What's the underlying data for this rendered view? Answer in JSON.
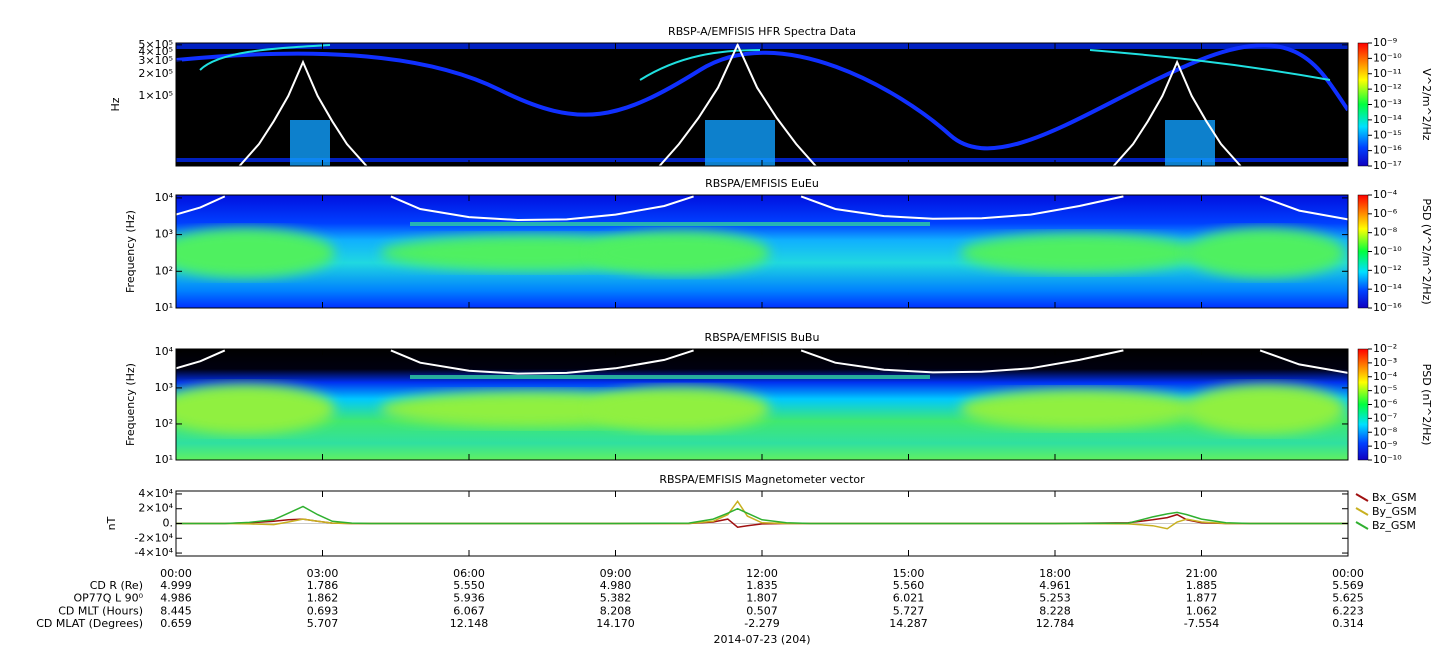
{
  "x_axis": {
    "xlim": [
      0,
      24
    ],
    "xticks": [
      {
        "value": 0,
        "label": "00:00"
      },
      {
        "value": 3,
        "label": "03:00"
      },
      {
        "value": 6,
        "label": "06:00"
      },
      {
        "value": 9,
        "label": "09:00"
      },
      {
        "value": 12,
        "label": "12:00"
      },
      {
        "value": 15,
        "label": "15:00"
      },
      {
        "value": 18,
        "label": "18:00"
      },
      {
        "value": 21,
        "label": "21:00"
      },
      {
        "value": 24,
        "label": "00:00"
      }
    ],
    "ephemeris": [
      {
        "label": "CD R (Re)",
        "values": [
          "4.999",
          "1.786",
          "5.550",
          "4.980",
          "1.835",
          "5.560",
          "4.961",
          "1.885",
          "5.569"
        ]
      },
      {
        "label": "OP77Q L 90⁰",
        "values": [
          "4.986",
          "1.862",
          "5.936",
          "5.382",
          "1.807",
          "6.021",
          "5.253",
          "1.877",
          "5.625"
        ]
      },
      {
        "label": "CD MLT (Hours)",
        "values": [
          "8.445",
          "0.693",
          "6.067",
          "8.208",
          "0.507",
          "5.727",
          "8.228",
          "1.062",
          "6.223"
        ]
      },
      {
        "label": "CD MLAT (Degrees)",
        "values": [
          "0.659",
          "5.707",
          "12.148",
          "14.170",
          "-2.279",
          "14.287",
          "12.784",
          "-7.554",
          "0.314"
        ]
      }
    ],
    "date": "2014-07-23 (204)"
  },
  "chart_data": [
    {
      "type": "spectrogram",
      "title": "RBSP-A/EMFISIS  HFR Spectra Data",
      "ylabel": "Hz",
      "log_y": true,
      "ylim": [
        11000,
        530000
      ],
      "yticks": [
        {
          "value": 500000,
          "label": "5×10⁵"
        },
        {
          "value": 400000,
          "label": "4×10⁵"
        },
        {
          "value": 300000,
          "label": "3×10⁵"
        },
        {
          "value": 200000,
          "label": "2×10⁵"
        },
        {
          "value": 100000,
          "label": "1×10⁵"
        }
      ],
      "colorbar": {
        "label": "V^2/m^2/Hz",
        "lim": [
          1e-17,
          1e-09
        ],
        "ticks": [
          {
            "value": 1e-09,
            "label": "10⁻⁹"
          },
          {
            "value": 1e-10,
            "label": "10⁻¹⁰"
          },
          {
            "value": 1e-11,
            "label": "10⁻¹¹"
          },
          {
            "value": 1e-12,
            "label": "10⁻¹²"
          },
          {
            "value": 1e-13,
            "label": "10⁻¹³"
          },
          {
            "value": 1e-14,
            "label": "10⁻¹⁴"
          },
          {
            "value": 1e-15,
            "label": "10⁻¹⁵"
          },
          {
            "value": 1e-16,
            "label": "10⁻¹⁶"
          },
          {
            "value": 1e-17,
            "label": "10⁻¹⁷"
          }
        ]
      },
      "overlay_color": "#ffffff",
      "overlays": [
        {
          "x": [
            1.3,
            1.7,
            2.0,
            2.3,
            2.6,
            2.9,
            3.2,
            3.5,
            3.9
          ],
          "values": [
            11000,
            22000,
            45000,
            100000,
            290000,
            100000,
            45000,
            22000,
            11000
          ]
        },
        {
          "x": [
            9.9,
            10.3,
            10.7,
            11.1,
            11.5,
            11.9,
            12.3,
            12.7,
            13.1
          ],
          "values": [
            11000,
            22000,
            50000,
            130000,
            500000,
            130000,
            50000,
            22000,
            11000
          ]
        },
        {
          "x": [
            19.2,
            19.6,
            19.9,
            20.2,
            20.5,
            20.8,
            21.1,
            21.4,
            21.8
          ],
          "values": [
            11000,
            22000,
            45000,
            100000,
            290000,
            100000,
            45000,
            22000,
            11000
          ]
        }
      ]
    },
    {
      "type": "spectrogram",
      "title": "RBSPA/EMFISIS  EuEu",
      "ylabel": "Frequency (Hz)",
      "log_y": true,
      "ylim": [
        10,
        12000
      ],
      "yticks": [
        {
          "value": 10000,
          "label": "10⁴"
        },
        {
          "value": 1000,
          "label": "10³"
        },
        {
          "value": 100,
          "label": "10²"
        },
        {
          "value": 10,
          "label": "10¹"
        }
      ],
      "colorbar": {
        "label": "PSD (V^2/m^2/Hz)",
        "lim": [
          1e-16,
          0.0001
        ],
        "ticks": [
          {
            "value": 0.0001,
            "label": "10⁻⁴"
          },
          {
            "value": 1e-06,
            "label": "10⁻⁶"
          },
          {
            "value": 1e-08,
            "label": "10⁻⁸"
          },
          {
            "value": 1e-10,
            "label": "10⁻¹⁰"
          },
          {
            "value": 1e-12,
            "label": "10⁻¹²"
          },
          {
            "value": 1e-14,
            "label": "10⁻¹⁴"
          },
          {
            "value": 1e-16,
            "label": "10⁻¹⁶"
          }
        ]
      },
      "overlay_color": "#ffffff",
      "overlays": [
        {
          "x": [
            0,
            0.5,
            1.0
          ],
          "values": [
            3500,
            5500,
            11000
          ]
        },
        {
          "x": [
            4.4,
            5,
            6,
            7,
            8,
            9,
            10,
            10.6
          ],
          "values": [
            11000,
            5000,
            3000,
            2500,
            2600,
            3500,
            6000,
            11000
          ]
        },
        {
          "x": [
            12.8,
            13.5,
            14.5,
            15.5,
            16.5,
            17.5,
            18.5,
            19.4
          ],
          "values": [
            11000,
            5000,
            3200,
            2700,
            2800,
            3500,
            6000,
            11000
          ]
        },
        {
          "x": [
            22.2,
            23,
            24
          ],
          "values": [
            11000,
            4500,
            2600
          ]
        }
      ]
    },
    {
      "type": "spectrogram",
      "title": "RBSPA/EMFISIS  BuBu",
      "ylabel": "Frequency (Hz)",
      "log_y": true,
      "ylim": [
        10,
        12000
      ],
      "yticks": [
        {
          "value": 10000,
          "label": "10⁴"
        },
        {
          "value": 1000,
          "label": "10³"
        },
        {
          "value": 100,
          "label": "10²"
        },
        {
          "value": 10,
          "label": "10¹"
        }
      ],
      "colorbar": {
        "label": "PSD (nT^2/Hz)",
        "lim": [
          1e-10,
          0.01
        ],
        "ticks": [
          {
            "value": 0.01,
            "label": "10⁻²"
          },
          {
            "value": 0.001,
            "label": "10⁻³"
          },
          {
            "value": 0.0001,
            "label": "10⁻⁴"
          },
          {
            "value": 1e-05,
            "label": "10⁻⁵"
          },
          {
            "value": 1e-06,
            "label": "10⁻⁶"
          },
          {
            "value": 1e-07,
            "label": "10⁻⁷"
          },
          {
            "value": 1e-08,
            "label": "10⁻⁸"
          },
          {
            "value": 1e-09,
            "label": "10⁻⁹"
          },
          {
            "value": 1e-10,
            "label": "10⁻¹⁰"
          }
        ]
      },
      "overlay_color": "#ffffff",
      "overlays": [
        {
          "x": [
            0,
            0.5,
            1.0
          ],
          "values": [
            3500,
            5500,
            11000
          ]
        },
        {
          "x": [
            4.4,
            5,
            6,
            7,
            8,
            9,
            10,
            10.6
          ],
          "values": [
            11000,
            5000,
            3000,
            2500,
            2600,
            3500,
            6000,
            11000
          ]
        },
        {
          "x": [
            12.8,
            13.5,
            14.5,
            15.5,
            16.5,
            17.5,
            18.5,
            19.4
          ],
          "values": [
            11000,
            5000,
            3200,
            2700,
            2800,
            3500,
            6000,
            11000
          ]
        },
        {
          "x": [
            22.2,
            23,
            24
          ],
          "values": [
            11000,
            4500,
            2600
          ]
        }
      ]
    },
    {
      "type": "line",
      "title": "RBSPA/EMFISIS  Magnetometer vector",
      "ylabel": "nT",
      "ylim": [
        -44000,
        44000
      ],
      "yticks": [
        {
          "value": 40000,
          "label": "4×10⁴"
        },
        {
          "value": 20000,
          "label": "2×10⁴"
        },
        {
          "value": 0,
          "label": "0."
        },
        {
          "value": -20000,
          "label": "-2×10⁴"
        },
        {
          "value": -40000,
          "label": "-4×10⁴"
        }
      ],
      "x": [
        0,
        1,
        1.5,
        2,
        2.3,
        2.6,
        2.9,
        3.2,
        3.6,
        4,
        6,
        9,
        10.5,
        11,
        11.3,
        11.5,
        11.7,
        12,
        12.5,
        13,
        15,
        18,
        19.5,
        20,
        20.3,
        20.5,
        20.7,
        21,
        21.5,
        22,
        24
      ],
      "series": [
        {
          "name": "Bx_GSM",
          "color": "#a01010",
          "values": [
            0,
            0,
            1000,
            3000,
            5000,
            6000,
            3000,
            500,
            0,
            0,
            0,
            0,
            0,
            2000,
            6000,
            -5000,
            -3000,
            -500,
            0,
            0,
            0,
            0,
            1000,
            5000,
            8000,
            12000,
            5000,
            1000,
            0,
            0,
            0
          ]
        },
        {
          "name": "By_GSM",
          "color": "#c8b020",
          "values": [
            0,
            0,
            -500,
            -1500,
            2000,
            6000,
            3000,
            500,
            0,
            0,
            0,
            0,
            0,
            3000,
            12000,
            30000,
            10000,
            1000,
            0,
            0,
            0,
            0,
            -500,
            -3000,
            -7000,
            2000,
            6000,
            2000,
            0,
            0,
            0
          ]
        },
        {
          "name": "Bz_GSM",
          "color": "#30b030",
          "values": [
            0,
            0,
            1500,
            5000,
            14000,
            23000,
            12000,
            3000,
            500,
            0,
            0,
            0,
            500,
            6000,
            14000,
            20000,
            14000,
            5000,
            1000,
            0,
            0,
            0,
            500,
            9000,
            13000,
            15000,
            12000,
            6000,
            1000,
            0,
            0
          ]
        }
      ]
    }
  ]
}
